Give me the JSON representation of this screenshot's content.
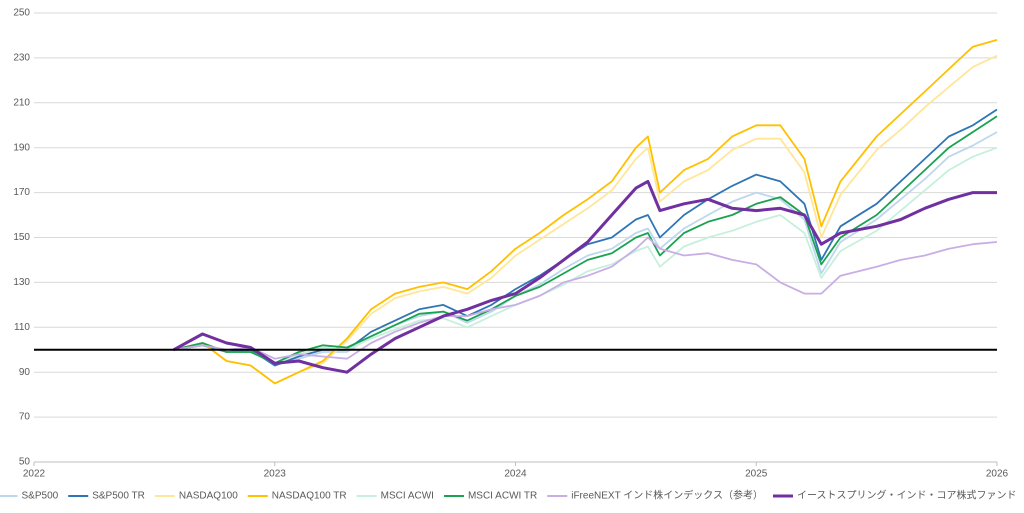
{
  "chart_data": {
    "type": "line",
    "x": [
      2022.58,
      2022.7,
      2022.8,
      2022.9,
      2023.0,
      2023.1,
      2023.2,
      2023.3,
      2023.4,
      2023.5,
      2023.6,
      2023.7,
      2023.8,
      2023.9,
      2024.0,
      2024.1,
      2024.2,
      2024.3,
      2024.4,
      2024.5,
      2024.55,
      2024.6,
      2024.7,
      2024.8,
      2024.9,
      2025.0,
      2025.1,
      2025.2,
      2025.27,
      2025.35,
      2025.5,
      2025.6,
      2025.7,
      2025.8,
      2025.9,
      2026.0
    ],
    "xlim": [
      2022,
      2026
    ],
    "xticks": [
      2022,
      2023,
      2024,
      2025,
      2026
    ],
    "ylim": [
      50,
      250
    ],
    "yticks": [
      50,
      70,
      90,
      110,
      130,
      150,
      170,
      190,
      210,
      230,
      250
    ],
    "grid": true,
    "reference_line": 100,
    "legend": "bottom",
    "series": [
      {
        "name": "S&P500",
        "color": "#bdd7ee",
        "values": [
          100,
          102,
          99,
          100,
          93,
          96,
          99,
          99,
          106,
          111,
          115,
          117,
          112,
          117,
          124,
          129,
          136,
          142,
          145,
          152,
          154,
          145,
          154,
          160,
          166,
          170,
          167,
          158,
          134,
          148,
          158,
          167,
          176,
          186,
          191,
          197
        ]
      },
      {
        "name": "S&P500 TR",
        "color": "#2e75b6",
        "values": [
          100,
          102,
          99,
          100,
          93,
          97,
          100,
          100,
          108,
          113,
          118,
          120,
          115,
          120,
          127,
          133,
          140,
          147,
          150,
          158,
          160,
          150,
          160,
          167,
          173,
          178,
          175,
          165,
          140,
          155,
          165,
          175,
          185,
          195,
          200,
          207
        ]
      },
      {
        "name": "NASDAQ100",
        "color": "#ffe699",
        "values": [
          100,
          103,
          95,
          93,
          85,
          90,
          94,
          104,
          116,
          123,
          126,
          128,
          125,
          132,
          142,
          149,
          156,
          163,
          171,
          185,
          190,
          166,
          175,
          180,
          189,
          194,
          194,
          179,
          150,
          169,
          189,
          198,
          208,
          217,
          226,
          231
        ]
      },
      {
        "name": "NASDAQ100 TR",
        "color": "#ffc000",
        "values": [
          100,
          103,
          95,
          93,
          85,
          90,
          95,
          105,
          118,
          125,
          128,
          130,
          127,
          135,
          145,
          152,
          160,
          167,
          175,
          190,
          195,
          170,
          180,
          185,
          195,
          200,
          200,
          185,
          155,
          175,
          195,
          205,
          215,
          225,
          235,
          238
        ]
      },
      {
        "name": "MSCI ACWI",
        "color": "#c6f0dc",
        "values": [
          100,
          103,
          99,
          99,
          94,
          98,
          101,
          100,
          105,
          109,
          113,
          114,
          110,
          115,
          120,
          124,
          129,
          135,
          138,
          144,
          146,
          137,
          146,
          150,
          153,
          157,
          160,
          152,
          132,
          144,
          153,
          162,
          171,
          180,
          186,
          190
        ]
      },
      {
        "name": "MSCI ACWI TR",
        "color": "#1aa251",
        "values": [
          100,
          103,
          99,
          99,
          94,
          99,
          102,
          101,
          106,
          111,
          116,
          117,
          113,
          118,
          124,
          128,
          134,
          140,
          143,
          150,
          152,
          142,
          152,
          157,
          160,
          165,
          168,
          160,
          138,
          150,
          160,
          170,
          180,
          190,
          197,
          204
        ]
      },
      {
        "name": "iFreeNEXT インド株インデックス（参考）",
        "color": "#c9aee5",
        "values": [
          100,
          102,
          100,
          101,
          96,
          98,
          97,
          96,
          103,
          108,
          112,
          115,
          115,
          118,
          120,
          124,
          130,
          133,
          137,
          145,
          150,
          145,
          142,
          143,
          140,
          138,
          130,
          125,
          125,
          133,
          137,
          140,
          142,
          145,
          147,
          148
        ]
      },
      {
        "name": "イーストスプリング・インド・コア株式ファンド",
        "color": "#7030a0",
        "values": [
          100,
          107,
          103,
          101,
          94,
          95,
          92,
          90,
          98,
          105,
          110,
          115,
          118,
          122,
          125,
          132,
          140,
          148,
          160,
          172,
          175,
          162,
          165,
          167,
          163,
          162,
          163,
          160,
          147,
          152,
          155,
          158,
          163,
          167,
          170,
          170
        ]
      }
    ]
  }
}
